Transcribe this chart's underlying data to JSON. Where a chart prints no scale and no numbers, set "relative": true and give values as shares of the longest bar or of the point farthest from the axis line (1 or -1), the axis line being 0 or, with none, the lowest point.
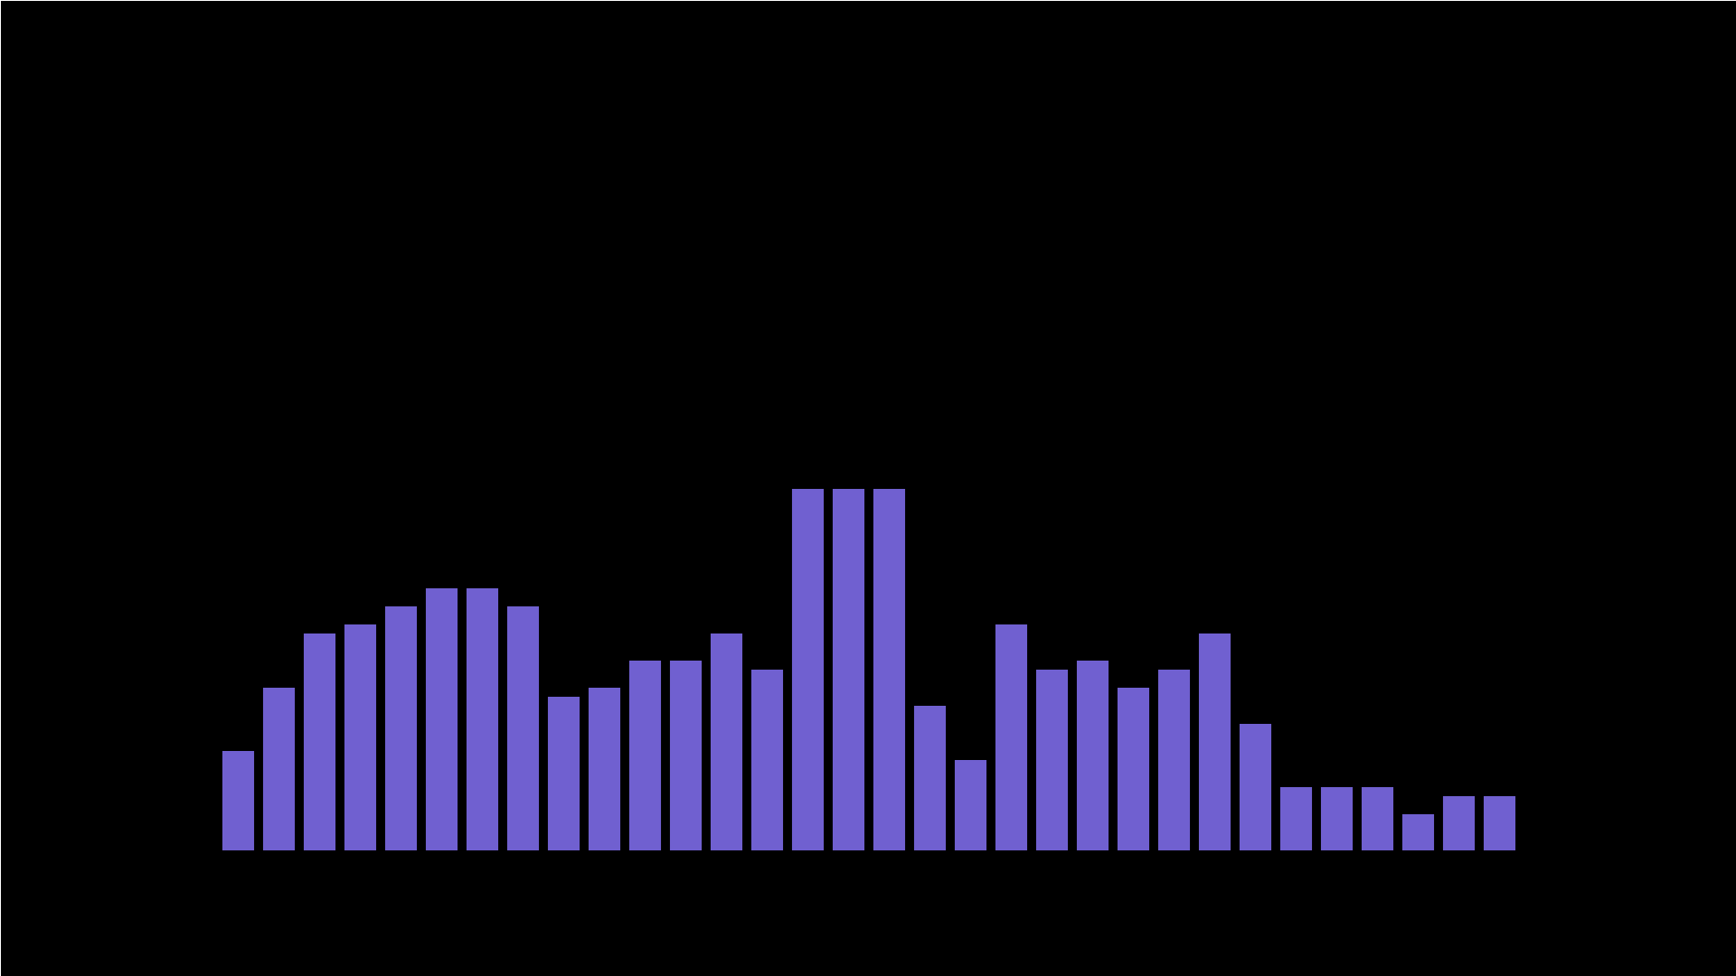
{
  "chart_data": {
    "type": "bar",
    "relative": true,
    "color": "#7060d0",
    "categories": [
      null,
      null,
      null,
      null,
      null,
      null,
      null,
      null,
      null,
      null,
      null,
      null,
      null,
      null,
      null,
      null,
      null,
      null,
      null,
      null,
      null,
      null,
      null,
      null,
      null,
      null,
      null,
      null,
      null,
      null,
      null,
      null
    ],
    "values": [
      0.275,
      0.45,
      0.6,
      0.625,
      0.675,
      0.725,
      0.725,
      0.675,
      0.425,
      0.45,
      0.525,
      0.525,
      0.6,
      0.5,
      1,
      1,
      1,
      0.4,
      0.25,
      0.625,
      0.5,
      0.525,
      0.45,
      0.5,
      0.6,
      0.35,
      0.175,
      0.175,
      0.175,
      0.1,
      0.15,
      0.15
    ]
  }
}
